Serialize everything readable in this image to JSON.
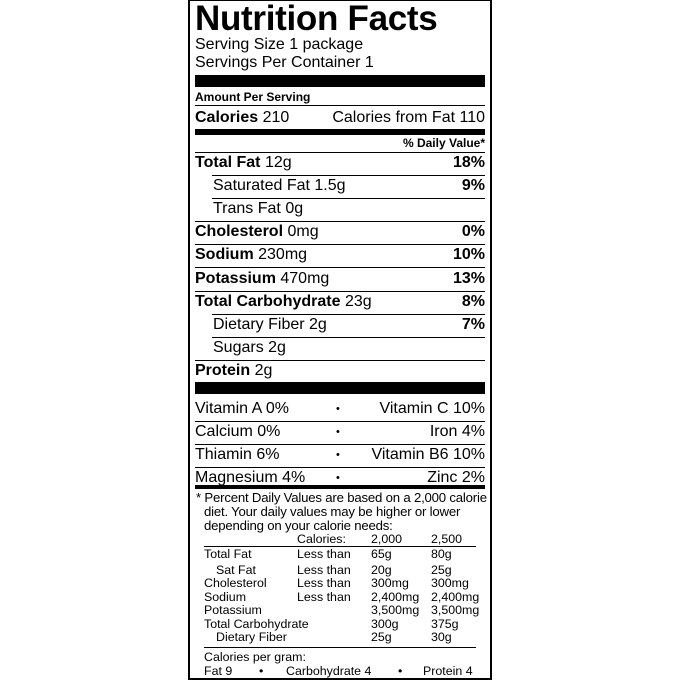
{
  "title": "Nutrition Facts",
  "serving_size": "Serving Size 1 package",
  "servings_per_container": "Servings Per Container 1",
  "amount_per_serving": "Amount Per Serving",
  "calories": {
    "label": "Calories",
    "value": "210",
    "from_fat": "Calories from Fat 110"
  },
  "daily_value_header": "% Daily Value*",
  "nutrients": [
    {
      "name": "Total Fat",
      "amount": "12g",
      "dv": "18%",
      "bold": true,
      "indent": false
    },
    {
      "name": "Saturated Fat",
      "amount": "1.5g",
      "dv": "9%",
      "bold": false,
      "indent": true
    },
    {
      "name": "Trans Fat",
      "amount": "0g",
      "dv": "",
      "bold": false,
      "indent": true
    },
    {
      "name": "Cholesterol",
      "amount": "0mg",
      "dv": "0%",
      "bold": true,
      "indent": false
    },
    {
      "name": "Sodium",
      "amount": "230mg",
      "dv": "10%",
      "bold": true,
      "indent": false
    },
    {
      "name": "Potassium",
      "amount": "470mg",
      "dv": "13%",
      "bold": true,
      "indent": false
    },
    {
      "name": "Total Carbohydrate",
      "amount": "23g",
      "dv": "8%",
      "bold": true,
      "indent": false
    },
    {
      "name": "Dietary Fiber",
      "amount": "2g",
      "dv": "7%",
      "bold": false,
      "indent": true
    },
    {
      "name": "Sugars",
      "amount": "2g",
      "dv": "",
      "bold": false,
      "indent": true
    },
    {
      "name": "Protein",
      "amount": "2g",
      "dv": "",
      "bold": true,
      "indent": false
    }
  ],
  "vitamins": [
    {
      "left": "Vitamin A 0%",
      "right": "Vitamin C 10%"
    },
    {
      "left": "Calcium 0%",
      "right": "Iron 4%"
    },
    {
      "left": "Thiamin 6%",
      "right": "Vitamin B6 10%"
    },
    {
      "left": "Magnesium 4%",
      "right": "Zinc 2%"
    }
  ],
  "separator": "•",
  "footnote": [
    "* Percent Daily Values are based on a 2,000 calorie",
    "diet. Your daily values may be higher or lower",
    "depending on your calorie needs:"
  ],
  "table": {
    "header": [
      "",
      "Calories:",
      "2,000",
      "2,500"
    ],
    "rows": [
      [
        "Total Fat",
        "Less than",
        "65g",
        "80g"
      ],
      [
        "Sat Fat",
        "Less than",
        "20g",
        "25g"
      ],
      [
        "Cholesterol",
        "Less than",
        "300mg",
        "300mg"
      ],
      [
        "Sodium",
        "Less than",
        "2,400mg",
        "2,400mg"
      ],
      [
        "Potassium",
        "",
        "3,500mg",
        "3,500mg"
      ],
      [
        "Total Carbohydrate",
        "",
        "300g",
        "375g"
      ],
      [
        "Dietary Fiber",
        "",
        "25g",
        "30g"
      ]
    ]
  },
  "calories_per_gram": {
    "label": "Calories per gram:",
    "fat": "Fat 9",
    "carbohydrate": "Carbohydrate 4",
    "protein": "Protein 4"
  }
}
